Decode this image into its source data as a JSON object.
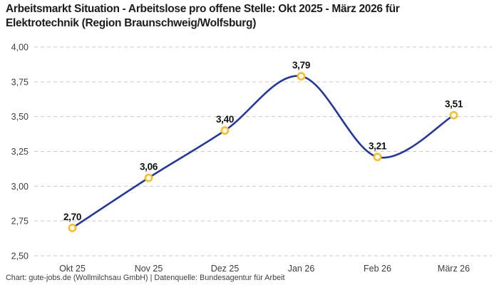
{
  "header": {
    "title_lines": [
      "Arbeitsmarkt Situation - Arbeitslose pro offene Stelle: Okt 2025 - März 2026 für",
      "Elektrotechnik (Region Braunschweig/Wolfsburg)"
    ]
  },
  "footer": {
    "text": "Chart: gute-jobs.de (Wollmilchsau GmbH) | Datenquelle: Bundesagentur für Arbeit"
  },
  "colors": {
    "line": "#22389e",
    "marker_ring": "#fbbe23",
    "marker_fill": "#ffffff",
    "grid": "#c9c9c9",
    "title": "#1c1c1c",
    "tick_label": "#3d3d3d",
    "data_label": "#111111"
  },
  "chart_data": {
    "type": "line",
    "title": "Arbeitsmarkt Situation - Arbeitslose pro offene Stelle: Okt 2025 - März 2026 für Elektrotechnik (Region Braunschweig/Wolfsburg)",
    "categories": [
      "Okt 25",
      "Nov 25",
      "Dez 25",
      "Jan 26",
      "Feb 26",
      "März 26"
    ],
    "values": [
      2.7,
      3.06,
      3.4,
      3.79,
      3.21,
      3.51
    ],
    "value_labels": [
      "2,70",
      "3,06",
      "3,40",
      "3,79",
      "3,21",
      "3,51"
    ],
    "xlabel": "",
    "ylabel": "",
    "ylim": [
      2.5,
      4.0
    ],
    "yticks": [
      2.5,
      2.75,
      3.0,
      3.25,
      3.5,
      3.75,
      4.0
    ],
    "ytick_labels": [
      "2,50",
      "2,75",
      "3,00",
      "3,25",
      "3,50",
      "3,75",
      "4,00"
    ],
    "grid": "horizontal-dashed",
    "legend": "none",
    "smooth": true,
    "marker": "open-circle",
    "source": "Bundesagentur für Arbeit"
  }
}
